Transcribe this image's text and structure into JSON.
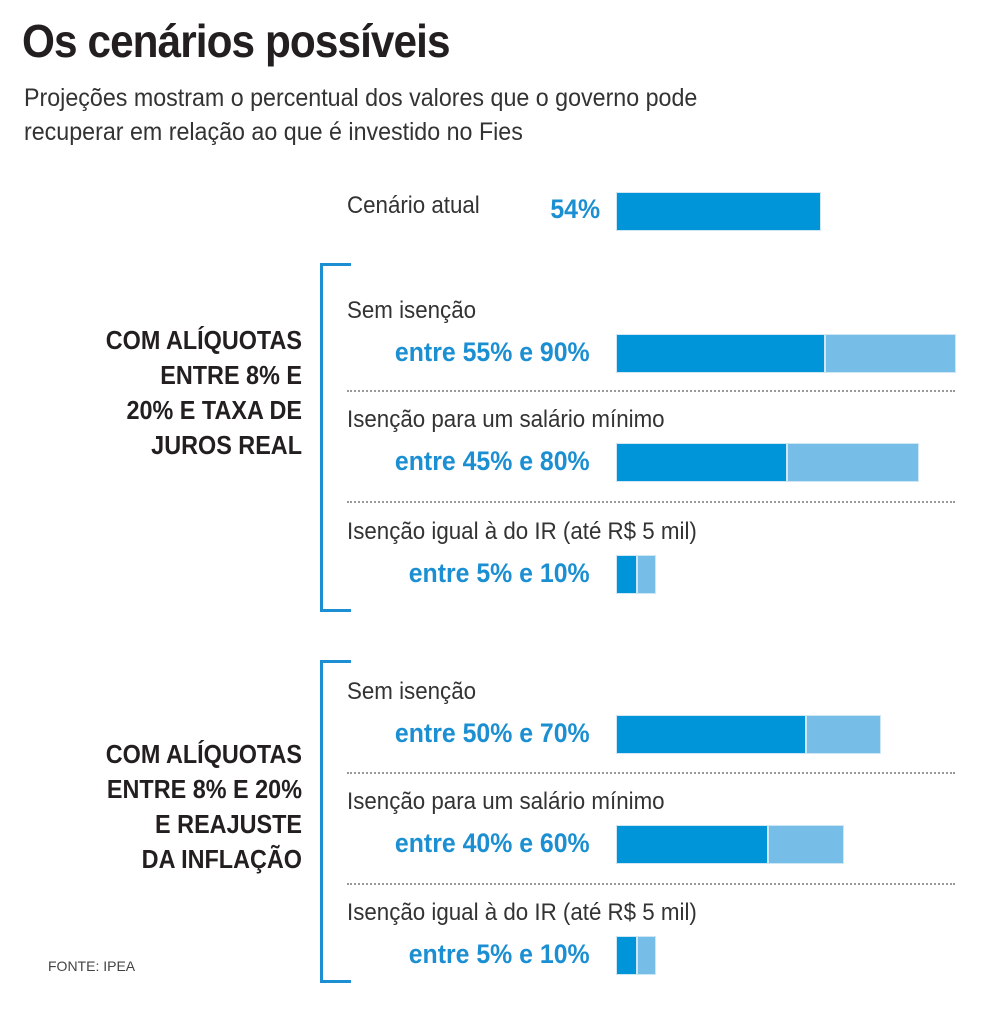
{
  "title": "Os cenários possíveis",
  "subtitle_lines": [
    "Projeções mostram o percentual dos valores que o governo pode",
    "recuperar em relação ao que é investido no Fies"
  ],
  "source": "FONTE: IPEA",
  "colors": {
    "bar_low": "#0094d9",
    "bar_range": "#76bde8",
    "value_text": "#1b8fd2",
    "bracket": "#1b8fd2"
  },
  "chart_data": {
    "type": "bar",
    "orientation": "horizontal",
    "stacked_range": true,
    "unit": "%",
    "title": "Os cenários possíveis",
    "current": {
      "label": "Cenário atual",
      "value_label": "54%",
      "value": 54
    },
    "groups": [
      {
        "label": "COM ALÍQUOTAS\nENTRE 8% E\n20% E TAXA DE\nJUROS REAL",
        "rows": [
          {
            "label": "Sem isenção",
            "value_label": "entre 55% e 90%",
            "low": 55,
            "high": 90
          },
          {
            "label": "Isenção para um salário mínimo",
            "value_label": "entre 45% e 80%",
            "low": 45,
            "high": 80
          },
          {
            "label": "Isenção igual à do IR (até R$ 5 mil)",
            "value_label": "entre 5% e 10%",
            "low": 5,
            "high": 10
          }
        ]
      },
      {
        "label": "COM ALÍQUOTAS\nENTRE 8% E 20%\nE REAJUSTE\nDA INFLAÇÃO",
        "rows": [
          {
            "label": "Sem isenção",
            "value_label": "entre 50% e 70%",
            "low": 50,
            "high": 70
          },
          {
            "label": "Isenção para um salário mínimo",
            "value_label": "entre 40% e 60%",
            "low": 40,
            "high": 60
          },
          {
            "label": "Isenção igual à do IR (até R$ 5 mil)",
            "value_label": "entre 5% e 10%",
            "low": 5,
            "high": 10
          }
        ]
      }
    ]
  }
}
